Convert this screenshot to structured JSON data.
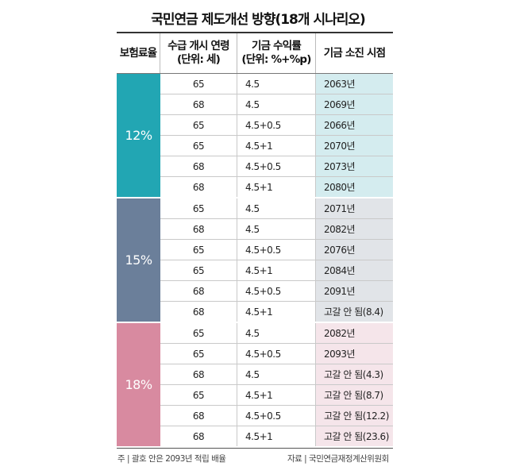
{
  "title": "국민연금 제도개선 방향(18개 시나리오)",
  "header": {
    "col1": "보험료율",
    "col2_line1": "수급 개시 연령",
    "col2_line2": "(단위: 세)",
    "col3_line1": "기금 수익률",
    "col3_line2": "(단위: %+%p)",
    "col4": "기금 소진 시점"
  },
  "colors": {
    "g12": "#22a6b3",
    "g12_light": "#d4ecef",
    "g15": "#6b7f9a",
    "g15_light": "#e1e4e8",
    "g18": "#d88aa0",
    "g18_light": "#f5e5ea"
  },
  "groups": [
    {
      "rate": "12%",
      "rows": [
        {
          "age": "65",
          "return": "4.5",
          "year": "2063년"
        },
        {
          "age": "68",
          "return": "4.5",
          "year": "2069년"
        },
        {
          "age": "65",
          "return": "4.5+0.5",
          "year": "2066년"
        },
        {
          "age": "65",
          "return": "4.5+1",
          "year": "2070년"
        },
        {
          "age": "68",
          "return": "4.5+0.5",
          "year": "2073년"
        },
        {
          "age": "68",
          "return": "4.5+1",
          "year": "2080년"
        }
      ]
    },
    {
      "rate": "15%",
      "rows": [
        {
          "age": "65",
          "return": "4.5",
          "year": "2071년"
        },
        {
          "age": "68",
          "return": "4.5",
          "year": "2082년"
        },
        {
          "age": "65",
          "return": "4.5+0.5",
          "year": "2076년"
        },
        {
          "age": "65",
          "return": "4.5+1",
          "year": "2084년"
        },
        {
          "age": "68",
          "return": "4.5+0.5",
          "year": "2091년"
        },
        {
          "age": "68",
          "return": "4.5+1",
          "year": "고갈 안 됨(8.4)"
        }
      ]
    },
    {
      "rate": "18%",
      "rows": [
        {
          "age": "65",
          "return": "4.5",
          "year": "2082년"
        },
        {
          "age": "65",
          "return": "4.5+0.5",
          "year": "2093년"
        },
        {
          "age": "68",
          "return": "4.5",
          "year": "고갈 안 됨(4.3)"
        },
        {
          "age": "65",
          "return": "4.5+1",
          "year": "고갈 안 됨(8.7)"
        },
        {
          "age": "68",
          "return": "4.5+0.5",
          "year": "고갈 안 됨(12.2)"
        },
        {
          "age": "68",
          "return": "4.5+1",
          "year": "고갈 안 됨(23.6)"
        }
      ]
    }
  ],
  "footer": {
    "note": "주 | 괄호 안은 2093년 적립 배율",
    "source": "자료 | 국민연금재정계산위원회"
  }
}
